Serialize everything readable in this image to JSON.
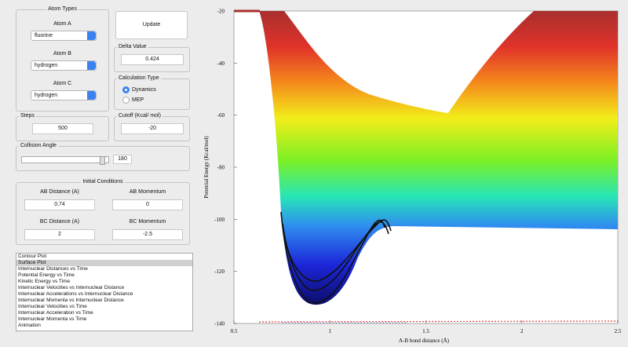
{
  "atom_types": {
    "title": "Atom Types",
    "atoms": [
      {
        "label": "Atom A",
        "value": "fluorine"
      },
      {
        "label": "Atom B",
        "value": "hydrogen"
      },
      {
        "label": "Atom C",
        "value": "hydrogen"
      }
    ]
  },
  "update_button": "Update",
  "delta_value": {
    "title": "Delta Value",
    "value": "0.424"
  },
  "calculation_type": {
    "title": "Calculation Type",
    "options": [
      "Dynamics",
      "MEP"
    ],
    "selected": 0
  },
  "steps": {
    "title": "Steps",
    "value": "500"
  },
  "cutoff": {
    "title": "Cutoff (Kcal/ mol)",
    "value": "-20"
  },
  "collision_angle": {
    "title": "Collision Angle",
    "value": "180"
  },
  "initial_conditions": {
    "title": "Initial Conditions",
    "fields": [
      {
        "label": "AB Distance (A)",
        "value": "0.74"
      },
      {
        "label": "AB Momentum",
        "value": "0"
      },
      {
        "label": "BC Distance (A)",
        "value": "2"
      },
      {
        "label": "BC Momentum",
        "value": "-2.5"
      }
    ]
  },
  "plot_list": {
    "items": [
      "Contour Plot",
      "Surface Plot",
      "Internuclear Distances vs Time",
      "Potential Energy vs Time",
      "Kinetic Energy vs Time",
      "Internuclear Velocities vs Internuclear Distance",
      "Internuclear Accelerations vs Internuclear Distance",
      "Internuclear Momenta vs Internuclear Distance",
      "Internuclear Velocities vs Time",
      "Internuclear Acceleration vs Time",
      "Internuclear Momenta vs Time",
      "Animation"
    ],
    "selected": 1
  },
  "plot": {
    "ylabel": "Potential Energy (Kcal/mol)",
    "xlabel": "A-B bond distance (Å)",
    "xlim": [
      0.5,
      2.5
    ],
    "xticks": [
      0.5,
      1,
      1.5,
      2,
      2.5
    ],
    "ylim": [
      -140,
      -20
    ],
    "yticks": [
      -140,
      -120,
      -100,
      -80,
      -60,
      -40,
      -20
    ]
  }
}
